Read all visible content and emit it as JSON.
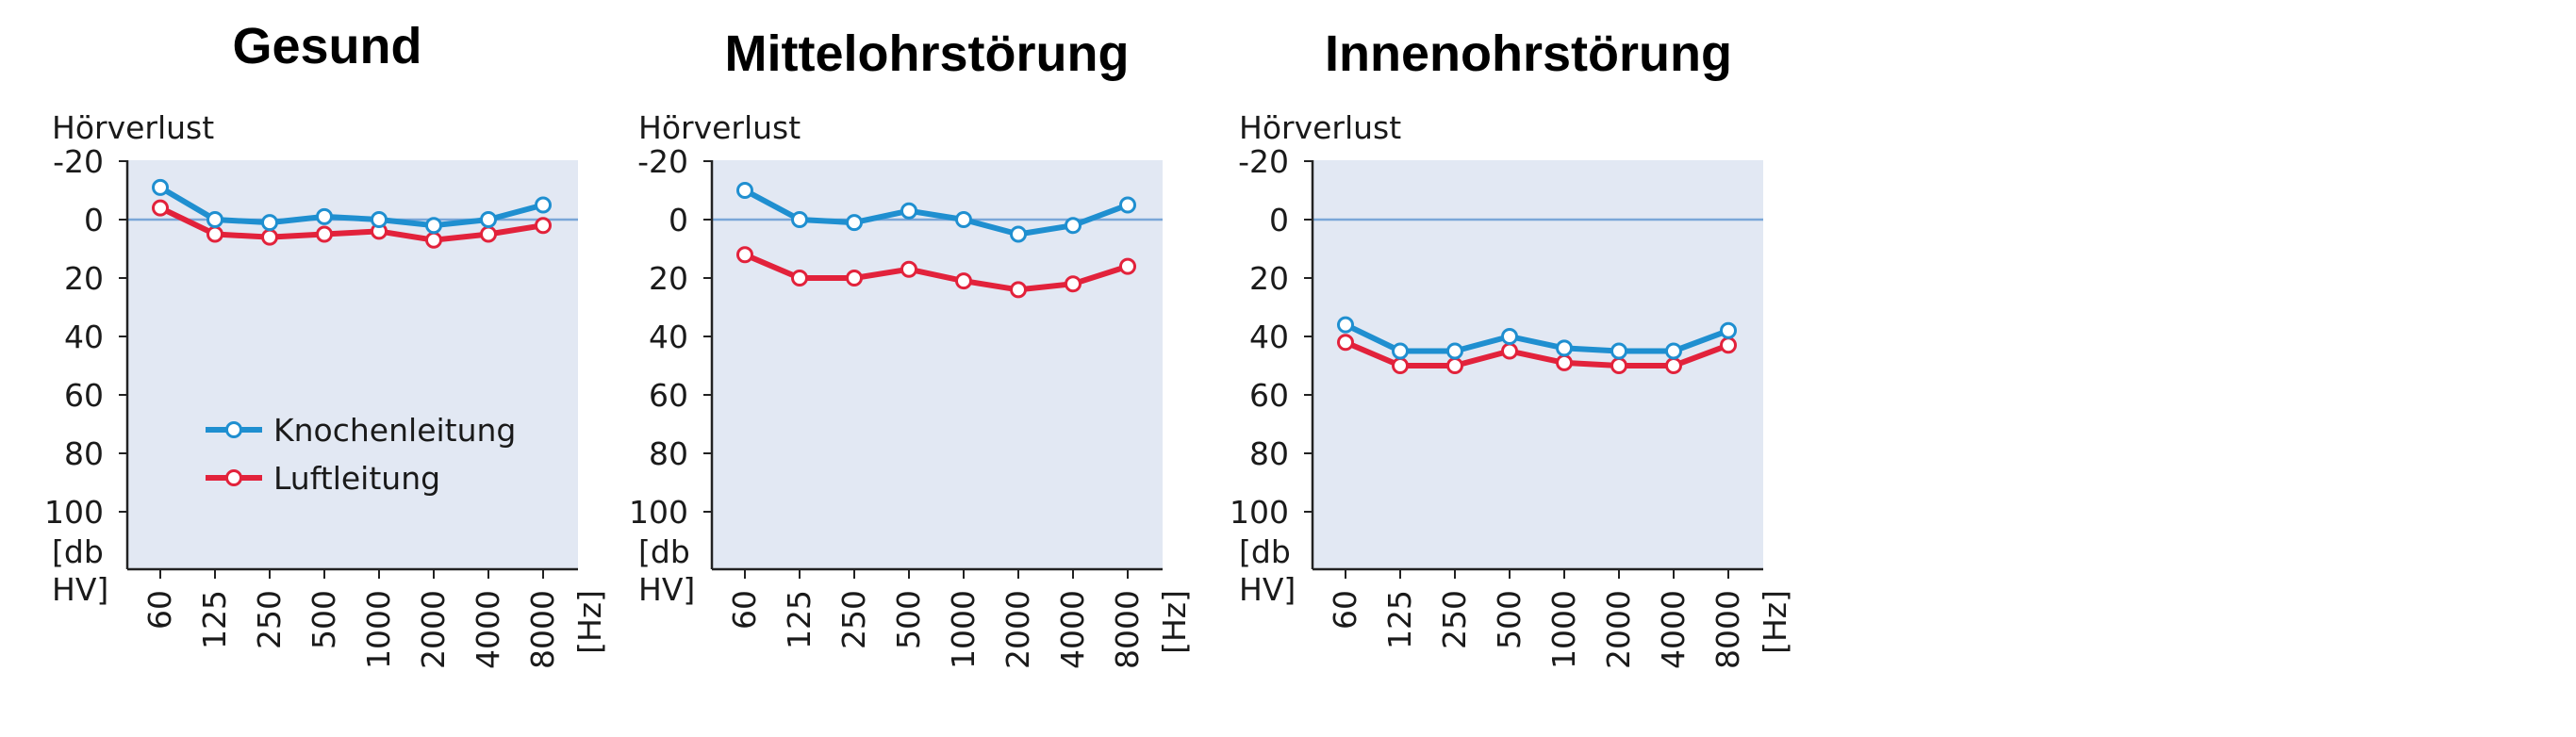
{
  "colors": {
    "background": "#ffffff",
    "plot_bg": "#e2e8f3",
    "zero_line": "#7aa6d8",
    "knochenleitung": "#1f8fd0",
    "luftleitung": "#e2223b"
  },
  "chart_data": [
    {
      "type": "line",
      "title": "Gesund",
      "ylabel_top": "Hörverlust",
      "y_unit_lines": [
        "[db",
        "HV]"
      ],
      "x_unit": "[Hz]",
      "categories": [
        "60",
        "125",
        "250",
        "500",
        "1000",
        "2000",
        "4000",
        "8000"
      ],
      "yticks": [
        "-20",
        "0",
        "20",
        "40",
        "60",
        "80",
        "100"
      ],
      "ylim": [
        -20,
        120
      ],
      "y_inverted": true,
      "legend": true,
      "legend_position": "lower-left",
      "series": [
        {
          "name": "Knochenleitung",
          "color": "#1f8fd0",
          "values": [
            -11,
            0,
            1,
            -1,
            0,
            2,
            0,
            -5
          ]
        },
        {
          "name": "Luftleitung",
          "color": "#e2223b",
          "values": [
            -4,
            5,
            6,
            5,
            4,
            7,
            5,
            2
          ]
        }
      ]
    },
    {
      "type": "line",
      "title": "Mittelohrstörung",
      "ylabel_top": "Hörverlust",
      "y_unit_lines": [
        "[db",
        "HV]"
      ],
      "x_unit": "[Hz]",
      "categories": [
        "60",
        "125",
        "250",
        "500",
        "1000",
        "2000",
        "4000",
        "8000"
      ],
      "yticks": [
        "-20",
        "0",
        "20",
        "40",
        "60",
        "80",
        "100"
      ],
      "ylim": [
        -20,
        120
      ],
      "y_inverted": true,
      "legend": false,
      "series": [
        {
          "name": "Knochenleitung",
          "color": "#1f8fd0",
          "values": [
            -10,
            0,
            1,
            -3,
            0,
            5,
            2,
            -5
          ]
        },
        {
          "name": "Luftleitung",
          "color": "#e2223b",
          "values": [
            12,
            20,
            20,
            17,
            21,
            24,
            22,
            16
          ]
        }
      ]
    },
    {
      "type": "line",
      "title": "Innenohrstörung",
      "ylabel_top": "Hörverlust",
      "y_unit_lines": [
        "[db",
        "HV]"
      ],
      "x_unit": "[Hz]",
      "categories": [
        "60",
        "125",
        "250",
        "500",
        "1000",
        "2000",
        "4000",
        "8000"
      ],
      "yticks": [
        "-20",
        "0",
        "20",
        "40",
        "60",
        "80",
        "100"
      ],
      "ylim": [
        -20,
        120
      ],
      "y_inverted": true,
      "legend": false,
      "series": [
        {
          "name": "Knochenleitung",
          "color": "#1f8fd0",
          "values": [
            36,
            45,
            45,
            40,
            44,
            45,
            45,
            38
          ]
        },
        {
          "name": "Luftleitung",
          "color": "#e2223b",
          "values": [
            42,
            50,
            50,
            45,
            49,
            50,
            50,
            43
          ]
        }
      ]
    }
  ]
}
